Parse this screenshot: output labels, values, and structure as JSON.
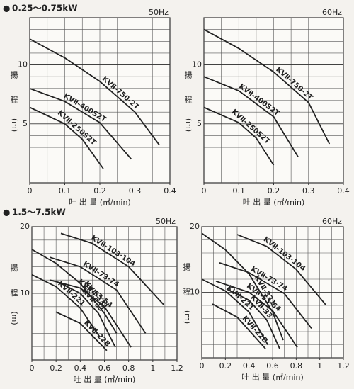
{
  "headings": [
    "0.25～0.75kW",
    "1.5～7.5kW"
  ],
  "chart_data": [
    {
      "type": "line",
      "subtitle": "50Hz",
      "y_label": [
        "揚",
        "程",
        "(m)"
      ],
      "x_label": "吐 出 量 (㎥/min)",
      "xlim": [
        0,
        0.4
      ],
      "xticks": [
        0,
        0.1,
        0.2,
        0.3,
        0.4
      ],
      "ylim": [
        0,
        14
      ],
      "yticks": [
        5,
        10
      ],
      "grid": true,
      "grid_step": {
        "x": 0.05,
        "y": 1
      },
      "color": "#222222",
      "series": [
        {
          "name": "KVⅡ-750-2T",
          "x": [
            0,
            0.1,
            0.2,
            0.3,
            0.37
          ],
          "values": [
            12.2,
            10.6,
            8.6,
            6.0,
            3.2
          ]
        },
        {
          "name": "KVⅡ-400S2T",
          "x": [
            0,
            0.1,
            0.2,
            0.29
          ],
          "values": [
            8.0,
            6.9,
            5.1,
            2.0
          ]
        },
        {
          "name": "KVⅡ-250S2T",
          "x": [
            0,
            0.1,
            0.15,
            0.21
          ],
          "values": [
            6.4,
            5.0,
            3.7,
            1.2
          ]
        }
      ]
    },
    {
      "type": "line",
      "subtitle": "60Hz",
      "y_label": [
        "揚",
        "程",
        "(m)"
      ],
      "x_label": "吐 出 量 (㎥/min)",
      "xlim": [
        0,
        0.4
      ],
      "xticks": [
        0,
        0.1,
        0.2,
        0.3,
        0.4
      ],
      "ylim": [
        0,
        14
      ],
      "yticks": [
        5,
        10
      ],
      "grid": true,
      "grid_step": {
        "x": 0.05,
        "y": 1
      },
      "color": "#222222",
      "series": [
        {
          "name": "KVⅡ-750-2T",
          "x": [
            0,
            0.1,
            0.2,
            0.3,
            0.36
          ],
          "values": [
            13.0,
            11.4,
            9.4,
            6.8,
            3.3
          ]
        },
        {
          "name": "KVⅡ-400S2T",
          "x": [
            0,
            0.1,
            0.2,
            0.27
          ],
          "values": [
            9.0,
            7.8,
            5.6,
            2.2
          ]
        },
        {
          "name": "KVⅡ-250S2T",
          "x": [
            0,
            0.1,
            0.15,
            0.2
          ],
          "values": [
            6.4,
            5.1,
            3.8,
            1.5
          ]
        }
      ]
    },
    {
      "type": "line",
      "subtitle": "50Hz",
      "y_label": [
        "揚",
        "程",
        "(m)"
      ],
      "x_label": "吐 出 量 (㎥/min)",
      "xlim": [
        0,
        1.2
      ],
      "xticks": [
        0,
        0.2,
        0.4,
        0.6,
        0.8,
        1,
        1.2
      ],
      "ylim": [
        0,
        20
      ],
      "yticks": [
        10,
        20
      ],
      "grid": true,
      "grid_step": {
        "x": 0.1,
        "y": 2
      },
      "color": "#222222",
      "series": [
        {
          "name": "KVⅡ-331",
          "x": [
            0,
            0.2,
            0.4,
            0.6,
            0.7
          ],
          "values": [
            16.6,
            14.5,
            11.5,
            7.0,
            4.0
          ]
        },
        {
          "name": "KVⅡ-221",
          "x": [
            0,
            0.2,
            0.4,
            0.56
          ],
          "values": [
            12.8,
            11.0,
            7.8,
            3.5
          ]
        },
        {
          "name": "KVⅡ-103·104",
          "x": [
            0.24,
            0.5,
            0.8,
            1.09
          ],
          "values": [
            19.0,
            17.5,
            14.0,
            8.3
          ]
        },
        {
          "name": "KVⅡ-73·74",
          "x": [
            0.15,
            0.4,
            0.7,
            0.94
          ],
          "values": [
            15.4,
            14.0,
            10.5,
            4.0
          ]
        },
        {
          "name": "KVⅡ-53·54",
          "x": [
            0.15,
            0.4,
            0.6,
            0.82
          ],
          "values": [
            12.0,
            10.8,
            8.0,
            1.9
          ]
        },
        {
          "name": "KVⅡ-33",
          "x": [
            0.24,
            0.4,
            0.55,
            0.69
          ],
          "values": [
            11.5,
            10.0,
            7.0,
            1.9
          ]
        },
        {
          "name": "KVⅡ-22B",
          "x": [
            0.2,
            0.4,
            0.62
          ],
          "values": [
            7.2,
            5.5,
            1.4
          ]
        }
      ]
    },
    {
      "type": "line",
      "subtitle": "60Hz",
      "y_label": [
        "揚",
        "程",
        "(m)"
      ],
      "x_label": "吐 出 量 (㎥/min)",
      "xlim": [
        0,
        1.2
      ],
      "xticks": [
        0,
        0.2,
        0.4,
        0.6,
        0.8,
        1,
        1.2
      ],
      "ylim": [
        0,
        20
      ],
      "yticks": [
        10,
        20
      ],
      "grid": true,
      "grid_step": {
        "x": 0.1,
        "y": 2
      },
      "color": "#222222",
      "series": [
        {
          "name": "KVⅡ-331",
          "x": [
            0,
            0.2,
            0.4,
            0.6,
            0.69
          ],
          "values": [
            19.0,
            16.5,
            12.8,
            7.0,
            2.7
          ]
        },
        {
          "name": "KVⅡ-221",
          "x": [
            0,
            0.2,
            0.4,
            0.56
          ],
          "values": [
            12.0,
            10.2,
            7.0,
            2.0
          ]
        },
        {
          "name": "KVⅡ-103·104",
          "x": [
            0.3,
            0.55,
            0.8,
            1.05
          ],
          "values": [
            18.8,
            17.0,
            13.5,
            8.1
          ]
        },
        {
          "name": "KVⅡ-73·74",
          "x": [
            0.15,
            0.4,
            0.7,
            0.93
          ],
          "values": [
            14.5,
            13.0,
            9.8,
            4.5
          ]
        },
        {
          "name": "KVⅡ-53·54",
          "x": [
            0.12,
            0.4,
            0.6,
            0.81
          ],
          "values": [
            11.7,
            10.0,
            7.2,
            1.6
          ]
        },
        {
          "name": "KVⅡ-33",
          "x": [
            0.21,
            0.4,
            0.55,
            0.66
          ],
          "values": [
            10.5,
            8.8,
            5.8,
            1.4
          ]
        },
        {
          "name": "KVⅡ-22B",
          "x": [
            0.09,
            0.3,
            0.54
          ],
          "values": [
            8.2,
            6.2,
            1.4
          ]
        }
      ]
    }
  ]
}
